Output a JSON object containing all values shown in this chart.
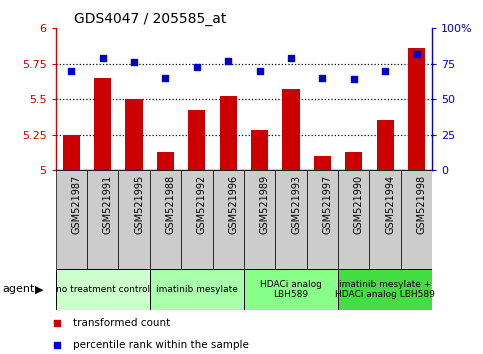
{
  "title": "GDS4047 / 205585_at",
  "samples": [
    "GSM521987",
    "GSM521991",
    "GSM521995",
    "GSM521988",
    "GSM521992",
    "GSM521996",
    "GSM521989",
    "GSM521993",
    "GSM521997",
    "GSM521990",
    "GSM521994",
    "GSM521998"
  ],
  "bar_values": [
    5.25,
    5.65,
    5.5,
    5.13,
    5.42,
    5.52,
    5.28,
    5.57,
    5.1,
    5.13,
    5.35,
    5.86
  ],
  "dot_values": [
    70,
    79,
    76,
    65,
    73,
    77,
    70,
    79,
    65,
    64,
    70,
    82
  ],
  "bar_color": "#cc0000",
  "dot_color": "#0000cc",
  "ylim_left": [
    5.0,
    6.0
  ],
  "ylim_right": [
    0,
    100
  ],
  "yticks_left": [
    5.0,
    5.25,
    5.5,
    5.75,
    6.0
  ],
  "ytick_labels_left": [
    "5",
    "5.25",
    "5.5",
    "5.75",
    "6"
  ],
  "yticks_right": [
    0,
    25,
    50,
    75,
    100
  ],
  "ytick_labels_right": [
    "0",
    "25",
    "50",
    "75",
    "100%"
  ],
  "hlines": [
    5.25,
    5.5,
    5.75
  ],
  "agents": [
    {
      "label": "no treatment control",
      "start": 0,
      "end": 3,
      "color": "#ccffcc"
    },
    {
      "label": "imatinib mesylate",
      "start": 3,
      "end": 6,
      "color": "#aaffaa"
    },
    {
      "label": "HDACi analog\nLBH589",
      "start": 6,
      "end": 9,
      "color": "#88ff88"
    },
    {
      "label": "imatinib mesylate +\nHDACi analog LBH589",
      "start": 9,
      "end": 12,
      "color": "#44dd44"
    }
  ],
  "legend_items": [
    {
      "label": "transformed count",
      "color": "#cc0000"
    },
    {
      "label": "percentile rank within the sample",
      "color": "#0000cc"
    }
  ],
  "agent_label": "agent",
  "tick_color_left": "#cc0000",
  "tick_color_right": "#0000cc",
  "xtick_bg_color": "#cccccc",
  "plot_bg_color": "#ffffff",
  "border_color": "#000000"
}
